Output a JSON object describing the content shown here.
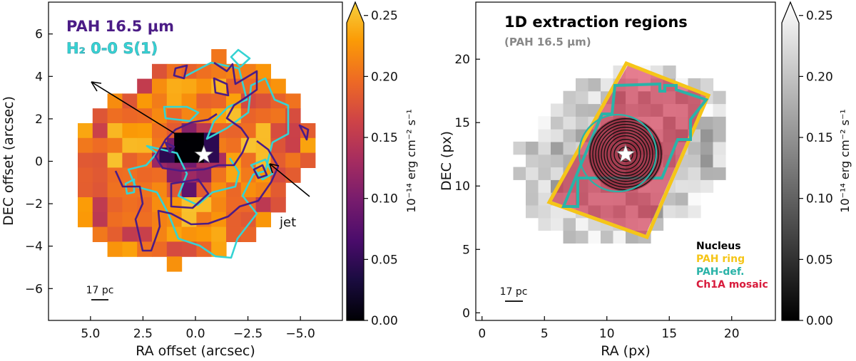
{
  "chart_data": [
    {
      "type": "heatmap",
      "panel": "left",
      "xlabel": "RA offset (arcsec)",
      "ylabel": "DEC offset (arcsec)",
      "xlim": [
        7.0,
        -7.0
      ],
      "ylim": [
        -7.5,
        7.5
      ],
      "xticks": [
        5.0,
        2.5,
        0.0,
        -2.5,
        -5.0
      ],
      "xtick_labels": [
        "5.0",
        "2.5",
        "0.0",
        "−2.5",
        "−5.0"
      ],
      "yticks": [
        -6,
        -4,
        -2,
        0,
        2,
        4,
        6
      ],
      "ytick_labels": [
        "−6",
        "−4",
        "−2",
        "0",
        "2",
        "4",
        "6"
      ],
      "colormap": "inferno",
      "colorbar": {
        "label": "10⁻¹⁴ erg cm⁻² s⁻¹",
        "range": [
          0.0,
          0.26
        ],
        "ticks": [
          0.0,
          0.05,
          0.1,
          0.15,
          0.2,
          0.25
        ],
        "tick_labels": [
          "0.00",
          "0.05",
          "0.10",
          "0.15",
          "0.20",
          "0.25"
        ],
        "extend": "max"
      },
      "legend": [
        {
          "label": "PAH 16.5 μm",
          "color": "#4b1c86"
        },
        {
          "label": "H₂ 0-0 S(1)",
          "color": "#35d3d3"
        }
      ],
      "annotations": [
        {
          "text": "jet",
          "x": -4.2,
          "y": -3.6
        }
      ],
      "scale_bar": {
        "label": "17 pc"
      },
      "nucleus": {
        "x": -0.4,
        "y": 0.3
      }
    },
    {
      "type": "heatmap",
      "panel": "right",
      "title": "1D extraction regions",
      "subtitle": "(PAH 16.5 μm)",
      "xlabel": "RA (px)",
      "ylabel": "DEC (px)",
      "xlim": [
        -0.5,
        23.5
      ],
      "ylim": [
        -0.6,
        24.5
      ],
      "xticks": [
        0,
        5,
        10,
        15,
        20
      ],
      "xtick_labels": [
        "0",
        "5",
        "10",
        "15",
        "20"
      ],
      "yticks": [
        0,
        5,
        10,
        15,
        20
      ],
      "ytick_labels": [
        "0",
        "5",
        "10",
        "15",
        "20"
      ],
      "colormap": "gray",
      "colorbar": {
        "label": "10⁻¹⁴ erg cm⁻² s⁻¹",
        "range": [
          0.0,
          0.26
        ],
        "ticks": [
          0.0,
          0.05,
          0.1,
          0.15,
          0.2,
          0.25
        ],
        "tick_labels": [
          "0.00",
          "0.05",
          "0.10",
          "0.15",
          "0.20",
          "0.25"
        ],
        "extend": "max"
      },
      "legend": [
        {
          "label": "Nucleus",
          "color": "#000000"
        },
        {
          "label": "PAH ring",
          "color": "#f5c518"
        },
        {
          "label": "PAH-def.",
          "color": "#2ab3a8"
        },
        {
          "label": "Ch1A mosaic",
          "color": "#d81b3c"
        }
      ],
      "scale_bar": {
        "label": "17 pc"
      },
      "nucleus": {
        "x": 11.5,
        "y": 12.5
      }
    }
  ],
  "colors": {
    "pah_contour": "#4b1c86",
    "h2_contour": "#35d3d3",
    "pah_ring": "#f5c518",
    "pah_def": "#2ab3a8",
    "ch1a_mosaic": "#d81b3c",
    "nucleus": "#000000"
  }
}
